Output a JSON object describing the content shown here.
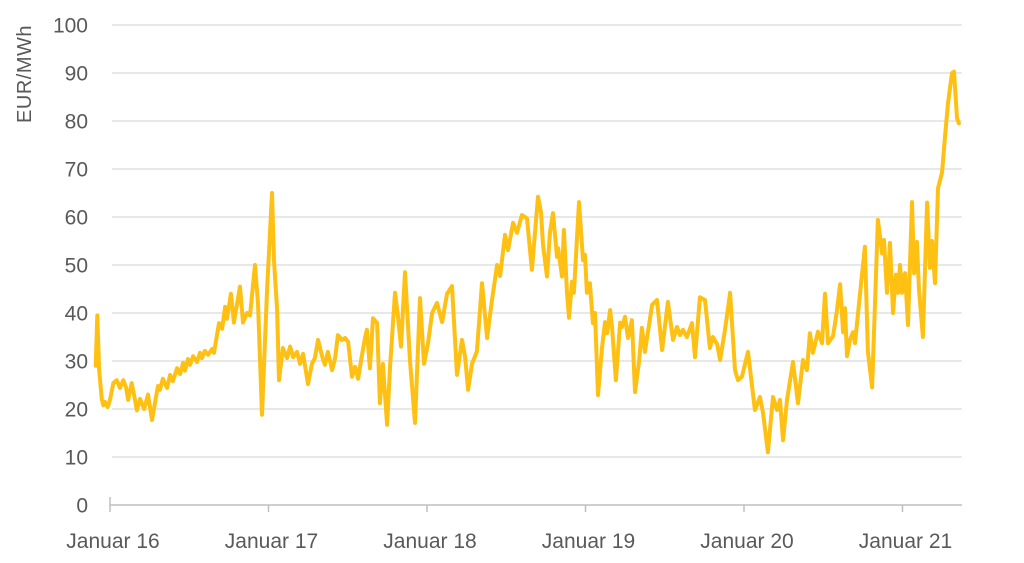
{
  "chart_data": {
    "type": "line",
    "title": "",
    "xlabel": "",
    "ylabel": "EUR/MWh",
    "unit": "EUR/MWh",
    "legend": "none",
    "grid": "horizontal",
    "ylim": [
      0,
      100
    ],
    "y_ticks": [
      0,
      10,
      20,
      30,
      40,
      50,
      60,
      70,
      80,
      90,
      100
    ],
    "x_ticks": [
      {
        "year": 2016,
        "label": "Januar 16"
      },
      {
        "year": 2017,
        "label": "Januar 17"
      },
      {
        "year": 2018,
        "label": "Januar 18"
      },
      {
        "year": 2019,
        "label": "Januar 19"
      },
      {
        "year": 2020,
        "label": "Januar 20"
      },
      {
        "year": 2021,
        "label": "Januar 21"
      }
    ],
    "xlim_years": [
      2015.9,
      2021.38
    ],
    "series": [
      {
        "name": "",
        "color": "#FDC013",
        "points": [
          [
            2015.91,
            29
          ],
          [
            2015.92,
            39.5
          ],
          [
            2015.931,
            28.3
          ],
          [
            2015.948,
            22
          ],
          [
            2015.958,
            20.8
          ],
          [
            2015.968,
            21.5
          ],
          [
            2015.985,
            20.4
          ],
          [
            2016,
            21.9
          ],
          [
            2016.021,
            25.4
          ],
          [
            2016.042,
            26
          ],
          [
            2016.063,
            24.4
          ],
          [
            2016.084,
            26
          ],
          [
            2016.101,
            24.5
          ],
          [
            2016.115,
            21.9
          ],
          [
            2016.137,
            25.4
          ],
          [
            2016.158,
            21.9
          ],
          [
            2016.17,
            19.7
          ],
          [
            2016.189,
            22.1
          ],
          [
            2016.215,
            20
          ],
          [
            2016.24,
            23
          ],
          [
            2016.265,
            17.7
          ],
          [
            2016.29,
            22.5
          ],
          [
            2016.303,
            24.8
          ],
          [
            2016.315,
            24
          ],
          [
            2016.334,
            26.3
          ],
          [
            2016.36,
            24.4
          ],
          [
            2016.379,
            27.1
          ],
          [
            2016.397,
            25.8
          ],
          [
            2016.423,
            28.5
          ],
          [
            2016.442,
            27.3
          ],
          [
            2016.461,
            29.6
          ],
          [
            2016.473,
            28
          ],
          [
            2016.492,
            30.4
          ],
          [
            2016.505,
            29.2
          ],
          [
            2016.524,
            31
          ],
          [
            2016.549,
            29.8
          ],
          [
            2016.568,
            31.7
          ],
          [
            2016.58,
            30.6
          ],
          [
            2016.599,
            32.1
          ],
          [
            2016.618,
            31.3
          ],
          [
            2016.644,
            32.5
          ],
          [
            2016.656,
            31.7
          ],
          [
            2016.675,
            35.4
          ],
          [
            2016.688,
            37.9
          ],
          [
            2016.707,
            36.7
          ],
          [
            2016.726,
            41.3
          ],
          [
            2016.738,
            38.8
          ],
          [
            2016.763,
            44
          ],
          [
            2016.782,
            38
          ],
          [
            2016.82,
            45.5
          ],
          [
            2016.839,
            38
          ],
          [
            2016.864,
            40
          ],
          [
            2016.883,
            39.5
          ],
          [
            2016.915,
            50
          ],
          [
            2016.934,
            42
          ],
          [
            2016.959,
            18.8
          ],
          [
            2016.991,
            45
          ],
          [
            2017.022,
            65
          ],
          [
            2017.035,
            51
          ],
          [
            2017.054,
            40.6
          ],
          [
            2017.066,
            26
          ],
          [
            2017.091,
            32.7
          ],
          [
            2017.117,
            30.6
          ],
          [
            2017.136,
            33
          ],
          [
            2017.155,
            30.8
          ],
          [
            2017.18,
            31.9
          ],
          [
            2017.199,
            29.4
          ],
          [
            2017.218,
            31.5
          ],
          [
            2017.249,
            25.2
          ],
          [
            2017.274,
            29.4
          ],
          [
            2017.293,
            30.6
          ],
          [
            2017.312,
            34.4
          ],
          [
            2017.338,
            31
          ],
          [
            2017.356,
            29.2
          ],
          [
            2017.375,
            31.9
          ],
          [
            2017.401,
            28.1
          ],
          [
            2017.42,
            30.6
          ],
          [
            2017.438,
            35.4
          ],
          [
            2017.464,
            34.4
          ],
          [
            2017.483,
            34.8
          ],
          [
            2017.502,
            34
          ],
          [
            2017.527,
            26.7
          ],
          [
            2017.546,
            28.8
          ],
          [
            2017.565,
            26.3
          ],
          [
            2017.59,
            31.3
          ],
          [
            2017.609,
            34.8
          ],
          [
            2017.621,
            36.5
          ],
          [
            2017.64,
            28.5
          ],
          [
            2017.659,
            38.9
          ],
          [
            2017.685,
            37.9
          ],
          [
            2017.703,
            21.2
          ],
          [
            2017.722,
            29.4
          ],
          [
            2017.748,
            16.7
          ],
          [
            2017.767,
            29
          ],
          [
            2017.798,
            44.2
          ],
          [
            2017.817,
            39.2
          ],
          [
            2017.836,
            33
          ],
          [
            2017.861,
            48.5
          ],
          [
            2017.893,
            30
          ],
          [
            2017.924,
            17.1
          ],
          [
            2017.956,
            43.1
          ],
          [
            2017.981,
            29.4
          ],
          [
            2018.006,
            33.7
          ],
          [
            2018.032,
            40
          ],
          [
            2018.063,
            42.1
          ],
          [
            2018.095,
            38.1
          ],
          [
            2018.126,
            44
          ],
          [
            2018.158,
            45.6
          ],
          [
            2018.189,
            27.1
          ],
          [
            2018.221,
            34.4
          ],
          [
            2018.24,
            31
          ],
          [
            2018.259,
            24
          ],
          [
            2018.284,
            29.4
          ],
          [
            2018.315,
            32
          ],
          [
            2018.347,
            46.2
          ],
          [
            2018.379,
            34.8
          ],
          [
            2018.41,
            42.7
          ],
          [
            2018.442,
            50
          ],
          [
            2018.461,
            47.7
          ],
          [
            2018.492,
            56.3
          ],
          [
            2018.511,
            53.1
          ],
          [
            2018.543,
            58.8
          ],
          [
            2018.568,
            56.7
          ],
          [
            2018.599,
            60.4
          ],
          [
            2018.631,
            59.7
          ],
          [
            2018.662,
            49
          ],
          [
            2018.7,
            64.2
          ],
          [
            2018.719,
            61
          ],
          [
            2018.732,
            54.2
          ],
          [
            2018.757,
            47.6
          ],
          [
            2018.776,
            56.9
          ],
          [
            2018.795,
            60.8
          ],
          [
            2018.82,
            51.7
          ],
          [
            2018.827,
            53.5
          ],
          [
            2018.852,
            47.6
          ],
          [
            2018.864,
            57.3
          ],
          [
            2018.883,
            44.2
          ],
          [
            2018.896,
            39
          ],
          [
            2018.915,
            46.5
          ],
          [
            2018.927,
            44.2
          ],
          [
            2018.959,
            63.1
          ],
          [
            2018.984,
            51
          ],
          [
            2018.997,
            52.1
          ],
          [
            2019.009,
            44.2
          ],
          [
            2019.028,
            46.2
          ],
          [
            2019.047,
            37.9
          ],
          [
            2019.06,
            40
          ],
          [
            2019.079,
            22.9
          ],
          [
            2019.104,
            32.7
          ],
          [
            2019.123,
            38.1
          ],
          [
            2019.136,
            35.8
          ],
          [
            2019.155,
            40.6
          ],
          [
            2019.167,
            37.1
          ],
          [
            2019.192,
            26
          ],
          [
            2019.218,
            38
          ],
          [
            2019.23,
            37.1
          ],
          [
            2019.249,
            39.2
          ],
          [
            2019.268,
            34.8
          ],
          [
            2019.293,
            38.5
          ],
          [
            2019.312,
            23.5
          ],
          [
            2019.338,
            30
          ],
          [
            2019.356,
            36.9
          ],
          [
            2019.375,
            31.9
          ],
          [
            2019.42,
            41.7
          ],
          [
            2019.451,
            42.7
          ],
          [
            2019.483,
            32.3
          ],
          [
            2019.52,
            42.3
          ],
          [
            2019.552,
            34.4
          ],
          [
            2019.577,
            37.1
          ],
          [
            2019.596,
            35.4
          ],
          [
            2019.615,
            36.5
          ],
          [
            2019.64,
            35
          ],
          [
            2019.672,
            37.9
          ],
          [
            2019.691,
            30.8
          ],
          [
            2019.722,
            43.3
          ],
          [
            2019.754,
            42.7
          ],
          [
            2019.785,
            32.7
          ],
          [
            2019.804,
            35
          ],
          [
            2019.83,
            33.5
          ],
          [
            2019.849,
            30.2
          ],
          [
            2019.88,
            36.5
          ],
          [
            2019.912,
            44.2
          ],
          [
            2019.943,
            28.1
          ],
          [
            2019.962,
            26
          ],
          [
            2019.987,
            26.7
          ],
          [
            2020.025,
            31.9
          ],
          [
            2020.069,
            19.8
          ],
          [
            2020.101,
            22.5
          ],
          [
            2020.12,
            19.2
          ],
          [
            2020.151,
            11
          ],
          [
            2020.183,
            22.5
          ],
          [
            2020.208,
            19.8
          ],
          [
            2020.227,
            21.9
          ],
          [
            2020.246,
            13.5
          ],
          [
            2020.271,
            21.9
          ],
          [
            2020.309,
            29.8
          ],
          [
            2020.341,
            21.2
          ],
          [
            2020.372,
            30.2
          ],
          [
            2020.397,
            28.1
          ],
          [
            2020.416,
            35.8
          ],
          [
            2020.435,
            31.7
          ],
          [
            2020.467,
            36.1
          ],
          [
            2020.492,
            33.7
          ],
          [
            2020.511,
            44
          ],
          [
            2020.53,
            33.7
          ],
          [
            2020.562,
            35.2
          ],
          [
            2020.587,
            40.6
          ],
          [
            2020.606,
            46
          ],
          [
            2020.625,
            36
          ],
          [
            2020.637,
            41
          ],
          [
            2020.65,
            31
          ],
          [
            2020.669,
            34.4
          ],
          [
            2020.688,
            36
          ],
          [
            2020.7,
            33.7
          ],
          [
            2020.732,
            44
          ],
          [
            2020.763,
            53.8
          ],
          [
            2020.782,
            32
          ],
          [
            2020.808,
            24.5
          ],
          [
            2020.845,
            59.4
          ],
          [
            2020.871,
            52.4
          ],
          [
            2020.883,
            55.2
          ],
          [
            2020.902,
            44.2
          ],
          [
            2020.921,
            54.6
          ],
          [
            2020.94,
            40
          ],
          [
            2020.959,
            48
          ],
          [
            2020.972,
            44.2
          ],
          [
            2020.984,
            50
          ],
          [
            2020.997,
            44.2
          ],
          [
            2021.016,
            48.3
          ],
          [
            2021.035,
            37.5
          ],
          [
            2021.06,
            63.1
          ],
          [
            2021.073,
            48.3
          ],
          [
            2021.091,
            54.8
          ],
          [
            2021.104,
            44.8
          ],
          [
            2021.129,
            35
          ],
          [
            2021.155,
            63
          ],
          [
            2021.173,
            49.4
          ],
          [
            2021.186,
            55
          ],
          [
            2021.205,
            46.2
          ],
          [
            2021.224,
            66
          ],
          [
            2021.249,
            69.2
          ],
          [
            2021.268,
            76.7
          ],
          [
            2021.287,
            83.7
          ],
          [
            2021.312,
            90
          ],
          [
            2021.325,
            90.3
          ],
          [
            2021.344,
            80.6
          ],
          [
            2021.356,
            79.5
          ]
        ]
      }
    ]
  },
  "colors": {
    "line": "#FDC013",
    "gridline": "#D9D9D9",
    "axis": "#BFBFBF",
    "text": "#595959",
    "background": "#FFFFFF"
  }
}
